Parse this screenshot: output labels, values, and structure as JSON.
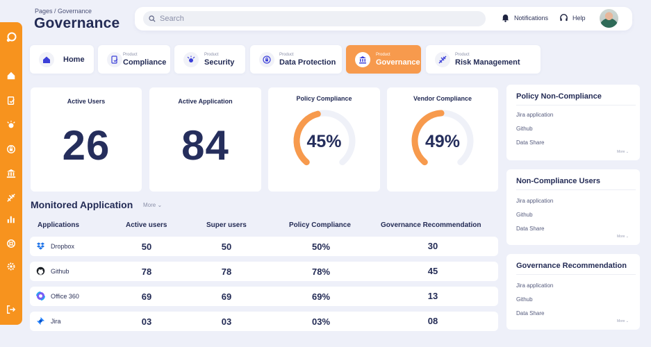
{
  "breadcrumb": "Pages / Governance",
  "page_title": "Governance",
  "search": {
    "placeholder": "Search"
  },
  "topbar": {
    "notifications": "Notifications",
    "help": "Help"
  },
  "sidebar": {
    "icons": [
      "logo-icon",
      "home-icon",
      "compliance-icon",
      "security-icon",
      "data-protection-icon",
      "governance-icon",
      "risk-management-icon",
      "chart-icon",
      "help-wheel-icon",
      "settings-icon",
      "logout-icon"
    ]
  },
  "tabs": [
    {
      "small": "",
      "label": "Home",
      "icon": "home-icon"
    },
    {
      "small": "Product",
      "label": "Compliance",
      "icon": "compliance-icon"
    },
    {
      "small": "Product",
      "label": "Security",
      "icon": "security-icon"
    },
    {
      "small": "Product",
      "label": "Data Protection",
      "icon": "lock-icon"
    },
    {
      "small": "Product",
      "label": "Governance",
      "icon": "bank-icon",
      "active": true
    },
    {
      "small": "Product",
      "label": "Risk Management",
      "icon": "risk-icon"
    }
  ],
  "stats": [
    {
      "title": "Active Users",
      "value": "26"
    },
    {
      "title": "Active Application",
      "value": "84"
    }
  ],
  "gauges": [
    {
      "title": "Policy Compliance",
      "value": 45,
      "label": "45%"
    },
    {
      "title": "Vendor Compliance",
      "value": 49,
      "label": "49%"
    }
  ],
  "colors": {
    "accent": "#f79a4d",
    "sidebar": "#f7931e",
    "gauge_track": "#eff1f8",
    "text_dark": "#232b55"
  },
  "monitored": {
    "title": "Monitored Application",
    "more": "More",
    "headers": [
      "Applications",
      "Active users",
      "Super users",
      "Policy Compliance",
      "Governance Recommendation"
    ],
    "rows": [
      {
        "name": "Dropbox",
        "icon": "dropbox-icon",
        "active": "50",
        "super": "50",
        "policy": "50%",
        "rec": "30"
      },
      {
        "name": "Github",
        "icon": "github-icon",
        "active": "78",
        "super": "78",
        "policy": "78%",
        "rec": "45"
      },
      {
        "name": "Office 360",
        "icon": "office-icon",
        "active": "69",
        "super": "69",
        "policy": "69%",
        "rec": "13"
      },
      {
        "name": "Jira",
        "icon": "jira-icon",
        "active": "03",
        "super": "03",
        "policy": "03%",
        "rec": "08"
      }
    ]
  },
  "panels": [
    {
      "title": "Policy Non-Compliance",
      "items": [
        "Jira application",
        "Github",
        "Data Share"
      ],
      "more": "More"
    },
    {
      "title": "Non-Compliance Users",
      "items": [
        "Jira application",
        "Github",
        "Data Share"
      ],
      "more": "More"
    },
    {
      "title": "Governance Recommendation",
      "items": [
        "Jira application",
        "Github",
        "Data Share"
      ],
      "more": "More"
    }
  ]
}
